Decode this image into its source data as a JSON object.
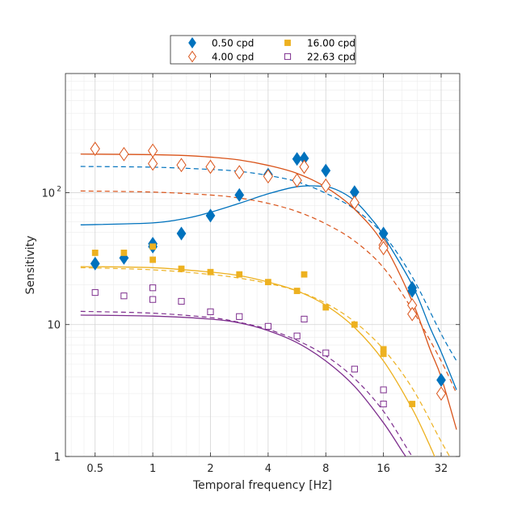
{
  "chart_data": {
    "type": "scatter",
    "title": "",
    "xlabel": "Temporal frequency [Hz]",
    "ylabel": "Sensitivity",
    "xscale": "log2",
    "yscale": "log10",
    "xlim": [
      0.35,
      40
    ],
    "ylim": [
      1,
      800
    ],
    "xticks": [
      0.5,
      1,
      2,
      4,
      8,
      16,
      32
    ],
    "xtick_labels": [
      "0.5",
      "1",
      "2",
      "4",
      "8",
      "16",
      "32"
    ],
    "yticks": [
      1,
      10,
      100
    ],
    "ytick_labels": [
      "1",
      "10",
      "10^2"
    ],
    "grid": "on (major and minor)",
    "legend_position": "top-center (above plot)",
    "legend_columns": 2,
    "series": [
      {
        "name": "0.50 cpd",
        "color": "#0072BD",
        "marker": "diamond-filled",
        "points": [
          [
            0.5,
            29
          ],
          [
            0.707,
            32
          ],
          [
            1,
            41
          ],
          [
            1,
            39
          ],
          [
            1.41,
            49
          ],
          [
            2,
            67
          ],
          [
            2.83,
            96
          ],
          [
            4,
            137
          ],
          [
            5.66,
            180
          ],
          [
            6.17,
            182
          ],
          [
            8,
            147
          ],
          [
            11.3,
            101
          ],
          [
            16,
            49
          ],
          [
            22.6,
            19
          ],
          [
            22.6,
            18
          ],
          [
            32,
            3.8
          ]
        ],
        "fit_solid": [
          [
            0.42,
            57
          ],
          [
            1,
            59
          ],
          [
            1.5,
            64
          ],
          [
            2,
            71
          ],
          [
            2.83,
            83
          ],
          [
            4,
            98
          ],
          [
            5.66,
            111
          ],
          [
            7.5,
            112
          ],
          [
            9,
            106
          ],
          [
            11.3,
            87
          ],
          [
            14,
            62
          ],
          [
            16,
            47
          ],
          [
            22.6,
            20
          ],
          [
            28,
            9.5
          ],
          [
            32,
            6.2
          ],
          [
            38.5,
            3.2
          ]
        ],
        "fit_dashed": [
          [
            0.42,
            158
          ],
          [
            1,
            156
          ],
          [
            2,
            150
          ],
          [
            2.83,
            145
          ],
          [
            4,
            135
          ],
          [
            5.66,
            121
          ],
          [
            8,
            99
          ],
          [
            11.3,
            75
          ],
          [
            16,
            48
          ],
          [
            22.6,
            23
          ],
          [
            32,
            8.5
          ],
          [
            38.5,
            5.3
          ]
        ]
      },
      {
        "name": "4.00 cpd",
        "color": "#D95319",
        "marker": "diamond-open",
        "points": [
          [
            0.5,
            215
          ],
          [
            0.707,
            196
          ],
          [
            1,
            208
          ],
          [
            1,
            166
          ],
          [
            1.41,
            162
          ],
          [
            2,
            157
          ],
          [
            2.83,
            143
          ],
          [
            4,
            133
          ],
          [
            5.66,
            124
          ],
          [
            6.17,
            157
          ],
          [
            8,
            113
          ],
          [
            11.3,
            84
          ],
          [
            16,
            40
          ],
          [
            16,
            38
          ],
          [
            22.6,
            14
          ],
          [
            22.6,
            12
          ],
          [
            32,
            3.0
          ]
        ],
        "fit_solid": [
          [
            0.42,
            196
          ],
          [
            1,
            194
          ],
          [
            1.5,
            191
          ],
          [
            2,
            186
          ],
          [
            2.83,
            177
          ],
          [
            4,
            161
          ],
          [
            5.66,
            140
          ],
          [
            8,
            110
          ],
          [
            11.3,
            75
          ],
          [
            16,
            41
          ],
          [
            22.6,
            15
          ],
          [
            28,
            6.5
          ],
          [
            32,
            4.0
          ],
          [
            38.5,
            1.6
          ]
        ],
        "fit_dashed": [
          [
            0.42,
            103
          ],
          [
            1,
            101
          ],
          [
            2,
            96
          ],
          [
            2.83,
            91
          ],
          [
            4,
            83
          ],
          [
            5.66,
            72
          ],
          [
            8,
            58
          ],
          [
            11.3,
            43
          ],
          [
            16,
            27
          ],
          [
            22.6,
            13
          ],
          [
            32,
            5.3
          ],
          [
            38.5,
            3.0
          ]
        ]
      },
      {
        "name": "16.00 cpd",
        "color": "#EDB120",
        "marker": "square-filled",
        "points": [
          [
            0.5,
            35
          ],
          [
            0.707,
            35
          ],
          [
            1,
            31
          ],
          [
            1,
            39
          ],
          [
            1.41,
            26.5
          ],
          [
            2,
            25
          ],
          [
            2.83,
            24
          ],
          [
            4,
            21
          ],
          [
            5.66,
            18
          ],
          [
            6.17,
            24
          ],
          [
            8,
            13.5
          ],
          [
            11.3,
            10
          ],
          [
            16,
            6.5
          ],
          [
            16,
            6
          ],
          [
            22.6,
            2.5
          ]
        ],
        "fit_solid": [
          [
            0.42,
            27.5
          ],
          [
            1,
            27
          ],
          [
            2,
            25
          ],
          [
            2.83,
            23.5
          ],
          [
            4,
            21
          ],
          [
            5.66,
            18
          ],
          [
            8,
            14
          ],
          [
            11.3,
            9.5
          ],
          [
            16,
            5.3
          ],
          [
            22.6,
            2.3
          ],
          [
            28,
            1.2
          ],
          [
            30,
            0.95
          ]
        ],
        "fit_dashed": [
          [
            0.42,
            27
          ],
          [
            1,
            26
          ],
          [
            2,
            24
          ],
          [
            2.83,
            22.5
          ],
          [
            4,
            20.5
          ],
          [
            5.66,
            18
          ],
          [
            8,
            14.5
          ],
          [
            11.3,
            10.5
          ],
          [
            16,
            6.5
          ],
          [
            22.6,
            3.3
          ],
          [
            32,
            1.3
          ],
          [
            37,
            0.9
          ]
        ]
      },
      {
        "name": "22.63 cpd",
        "color": "#7E2F8E",
        "marker": "square-open",
        "points": [
          [
            0.5,
            17.5
          ],
          [
            0.707,
            16.5
          ],
          [
            1,
            19
          ],
          [
            1,
            15.5
          ],
          [
            1.41,
            15
          ],
          [
            2,
            12.5
          ],
          [
            2.83,
            11.5
          ],
          [
            4,
            9.7
          ],
          [
            5.66,
            8.2
          ],
          [
            6.17,
            11
          ],
          [
            8,
            6.1
          ],
          [
            11.3,
            4.6
          ],
          [
            16,
            3.2
          ],
          [
            16,
            2.5
          ]
        ],
        "fit_solid": [
          [
            0.42,
            11.8
          ],
          [
            1,
            11.6
          ],
          [
            2,
            11.0
          ],
          [
            2.83,
            10.3
          ],
          [
            4,
            9.0
          ],
          [
            5.66,
            7.3
          ],
          [
            8,
            5.3
          ],
          [
            11.3,
            3.4
          ],
          [
            16,
            1.8
          ],
          [
            20,
            1.1
          ],
          [
            22,
            0.9
          ]
        ],
        "fit_dashed": [
          [
            0.42,
            12.6
          ],
          [
            1,
            12.2
          ],
          [
            2,
            11.3
          ],
          [
            2.83,
            10.4
          ],
          [
            4,
            9.2
          ],
          [
            5.66,
            7.6
          ],
          [
            8,
            5.8
          ],
          [
            11.3,
            3.9
          ],
          [
            16,
            2.2
          ],
          [
            22.6,
            1.0
          ],
          [
            25,
            0.85
          ]
        ]
      }
    ]
  }
}
